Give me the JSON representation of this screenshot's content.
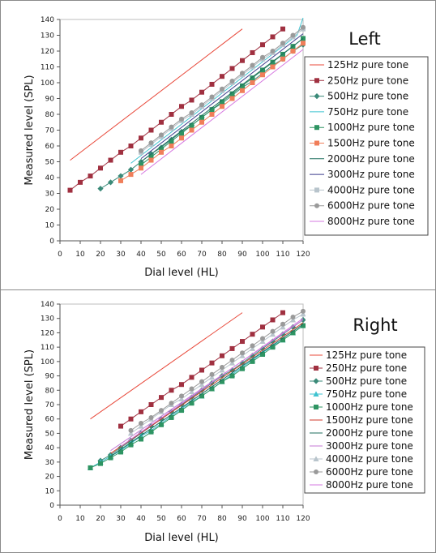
{
  "chart_data": [
    {
      "type": "line",
      "title": "Left",
      "xlabel": "Dial level (HL)",
      "ylabel": "Measured level (SPL)",
      "xlim": [
        0,
        120
      ],
      "ylim": [
        0,
        140
      ],
      "xticks": [
        0,
        10,
        20,
        30,
        40,
        50,
        60,
        70,
        80,
        90,
        100,
        110,
        120
      ],
      "yticks": [
        0,
        10,
        20,
        30,
        40,
        50,
        60,
        70,
        80,
        90,
        100,
        110,
        120,
        130,
        140
      ],
      "grid": false,
      "legend_position": "right",
      "series": [
        {
          "name": "125Hz pure tone",
          "color": "#e8483a",
          "marker": "none",
          "x": [
            5,
            90
          ],
          "y": [
            51,
            134
          ]
        },
        {
          "name": "250Hz pure tone",
          "color": "#a03040",
          "marker": "square",
          "x": [
            5,
            10,
            15,
            20,
            25,
            30,
            35,
            40,
            45,
            50,
            55,
            60,
            65,
            70,
            75,
            80,
            85,
            90,
            95,
            100,
            105,
            110
          ],
          "y": [
            32,
            37,
            41,
            46,
            51,
            56,
            60,
            65,
            70,
            75,
            80,
            85,
            89,
            94,
            99,
            104,
            109,
            114,
            119,
            124,
            129,
            134
          ]
        },
        {
          "name": "500Hz pure tone",
          "color": "#3a8a78",
          "marker": "diamond",
          "x": [
            20,
            25,
            30,
            35,
            40,
            45,
            50,
            55,
            60,
            65,
            70,
            75,
            80,
            85,
            90,
            95,
            100,
            105,
            110,
            115,
            120
          ],
          "y": [
            33,
            37,
            41,
            45,
            50,
            55,
            59,
            64,
            69,
            73,
            78,
            83,
            87,
            92,
            97,
            101,
            106,
            111,
            115,
            120,
            124
          ]
        },
        {
          "name": "750Hz pure tone",
          "color": "#3ec3d0",
          "marker": "none",
          "x": [
            35,
            117,
            120
          ],
          "y": [
            49,
            130,
            141
          ]
        },
        {
          "name": "1000Hz pure tone",
          "color": "#2e9462",
          "marker": "square",
          "x": [
            40,
            45,
            50,
            55,
            60,
            65,
            70,
            75,
            80,
            85,
            90,
            95,
            100,
            105,
            110,
            115,
            120
          ],
          "y": [
            48,
            53,
            58,
            63,
            68,
            73,
            78,
            83,
            88,
            93,
            98,
            103,
            108,
            113,
            118,
            123,
            128
          ]
        },
        {
          "name": "1500Hz pure tone",
          "color": "#f07e5a",
          "marker": "square",
          "x": [
            30,
            35,
            40,
            45,
            50,
            55,
            60,
            65,
            70,
            75,
            80,
            85,
            90,
            95,
            100,
            105,
            110,
            115,
            120
          ],
          "y": [
            38,
            42,
            46,
            51,
            56,
            60,
            65,
            70,
            75,
            80,
            85,
            90,
            95,
            100,
            105,
            110,
            115,
            120,
            125
          ]
        },
        {
          "name": "2000Hz pure tone",
          "color": "#1f6e5e",
          "marker": "none",
          "x": [
            40,
            120
          ],
          "y": [
            50,
            128
          ]
        },
        {
          "name": "3000Hz pure tone",
          "color": "#3a3a8a",
          "marker": "none",
          "x": [
            40,
            120
          ],
          "y": [
            52,
            131
          ]
        },
        {
          "name": "4000Hz pure tone",
          "color": "#b8c4cc",
          "marker": "square",
          "x": [
            40,
            45,
            50,
            55,
            60,
            65,
            70,
            75,
            80,
            85,
            90,
            95,
            100,
            105,
            110,
            115,
            120
          ],
          "y": [
            56,
            61,
            66,
            71,
            76,
            80,
            85,
            90,
            95,
            100,
            105,
            110,
            115,
            119,
            124,
            129,
            134
          ]
        },
        {
          "name": "6000Hz pure tone",
          "color": "#9a9a9a",
          "marker": "circle",
          "x": [
            40,
            45,
            50,
            55,
            60,
            65,
            70,
            75,
            80,
            85,
            90,
            95,
            100,
            105,
            110,
            115,
            120
          ],
          "y": [
            57,
            62,
            67,
            72,
            77,
            81,
            86,
            91,
            96,
            101,
            106,
            111,
            116,
            120,
            125,
            130,
            135
          ]
        },
        {
          "name": "8000Hz pure tone",
          "color": "#d678e0",
          "marker": "none",
          "x": [
            40,
            120
          ],
          "y": [
            42,
            121
          ]
        }
      ]
    },
    {
      "type": "line",
      "title": "Right",
      "xlabel": "Dial level (HL)",
      "ylabel": "Measured level (SPL)",
      "xlim": [
        0,
        120
      ],
      "ylim": [
        0,
        140
      ],
      "xticks": [
        0,
        10,
        20,
        30,
        40,
        50,
        60,
        70,
        80,
        90,
        100,
        110,
        120
      ],
      "yticks": [
        0,
        10,
        20,
        30,
        40,
        50,
        60,
        70,
        80,
        90,
        100,
        110,
        120,
        130,
        140
      ],
      "grid": false,
      "legend_position": "right",
      "series": [
        {
          "name": "125Hz pure tone",
          "color": "#e8483a",
          "marker": "none",
          "x": [
            15,
            90
          ],
          "y": [
            60,
            134
          ]
        },
        {
          "name": "250Hz pure tone",
          "color": "#a03040",
          "marker": "square",
          "x": [
            30,
            35,
            40,
            45,
            50,
            55,
            60,
            65,
            70,
            75,
            80,
            85,
            90,
            95,
            100,
            105,
            110
          ],
          "y": [
            55,
            60,
            65,
            70,
            75,
            80,
            84,
            89,
            94,
            99,
            104,
            109,
            114,
            119,
            124,
            129,
            134
          ]
        },
        {
          "name": "500Hz pure tone",
          "color": "#3a8a78",
          "marker": "diamond",
          "x": [
            20,
            25,
            30,
            35,
            40,
            45,
            50,
            55,
            60,
            65,
            70,
            75,
            80,
            85,
            90,
            95,
            100,
            105,
            110,
            115,
            120
          ],
          "y": [
            31,
            35,
            40,
            45,
            50,
            55,
            60,
            65,
            70,
            75,
            80,
            85,
            90,
            94,
            99,
            104,
            109,
            114,
            119,
            124,
            129
          ]
        },
        {
          "name": "750Hz pure tone",
          "color": "#3ec3d0",
          "marker": "triangle",
          "x": [
            15,
            20,
            25,
            30,
            35,
            40,
            45,
            50,
            55,
            60,
            65,
            70,
            75,
            80,
            85,
            90,
            95,
            100,
            105,
            110,
            115,
            120
          ],
          "y": [
            26,
            30,
            34,
            38,
            43,
            48,
            52,
            57,
            62,
            67,
            72,
            76,
            81,
            86,
            91,
            96,
            101,
            106,
            111,
            115,
            120,
            125
          ]
        },
        {
          "name": "1000Hz pure tone",
          "color": "#2e9462",
          "marker": "square",
          "x": [
            15,
            20,
            25,
            30,
            35,
            40,
            45,
            50,
            55,
            60,
            65,
            70,
            75,
            80,
            85,
            90,
            95,
            100,
            105,
            110,
            115,
            120
          ],
          "y": [
            26,
            29,
            33,
            37,
            42,
            46,
            51,
            56,
            61,
            66,
            71,
            76,
            81,
            86,
            90,
            95,
            100,
            105,
            110,
            115,
            120,
            125
          ]
        },
        {
          "name": "1500Hz pure tone",
          "color": "#d03a2a",
          "marker": "none",
          "x": [
            25,
            120
          ],
          "y": [
            36,
            127
          ]
        },
        {
          "name": "2000Hz pure tone",
          "color": "#1f6e5e",
          "marker": "none",
          "x": [
            25,
            120
          ],
          "y": [
            34,
            126
          ]
        },
        {
          "name": "3000Hz pure tone",
          "color": "#c47ad6",
          "marker": "none",
          "x": [
            25,
            120
          ],
          "y": [
            38,
            129
          ]
        },
        {
          "name": "4000Hz pure tone",
          "color": "#b8c4cc",
          "marker": "triangle",
          "x": [
            35,
            40,
            45,
            50,
            55,
            60,
            65,
            70,
            75,
            80,
            85,
            90,
            95,
            100,
            105,
            110,
            115,
            120
          ],
          "y": [
            50,
            55,
            60,
            65,
            70,
            74,
            79,
            84,
            89,
            94,
            99,
            104,
            109,
            114,
            119,
            124,
            129,
            133
          ]
        },
        {
          "name": "6000Hz pure tone",
          "color": "#9a9a9a",
          "marker": "circle",
          "x": [
            35,
            40,
            45,
            50,
            55,
            60,
            65,
            70,
            75,
            80,
            85,
            90,
            95,
            100,
            105,
            110,
            115,
            120
          ],
          "y": [
            52,
            57,
            61,
            66,
            71,
            76,
            81,
            86,
            91,
            96,
            101,
            106,
            111,
            116,
            121,
            126,
            131,
            135
          ]
        },
        {
          "name": "8000Hz pure tone",
          "color": "#d678e0",
          "marker": "none",
          "x": [
            30,
            120
          ],
          "y": [
            41,
            130
          ]
        }
      ]
    }
  ]
}
